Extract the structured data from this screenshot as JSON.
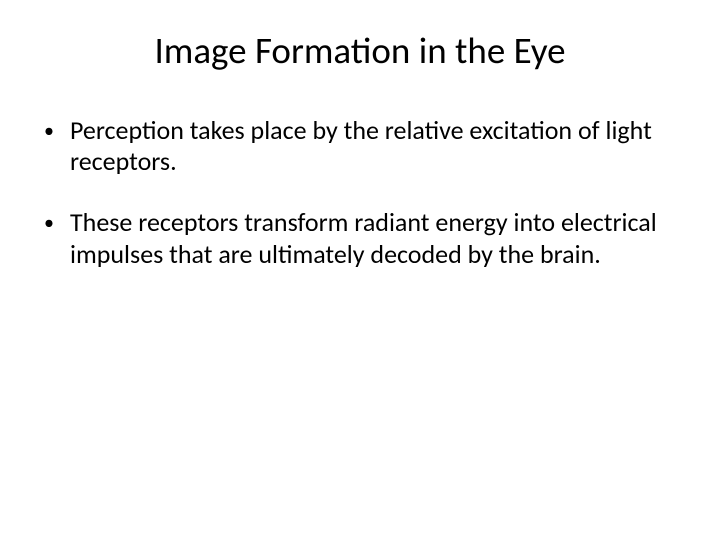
{
  "slide": {
    "title": "Image Formation in the Eye",
    "bullets": [
      {
        "marker": "•",
        "text": "Perception takes place by the relative excitation of light receptors."
      },
      {
        "marker": "•",
        "text": "These receptors transform radiant energy into electrical impulses that are ultimately decoded by the brain."
      }
    ],
    "styling": {
      "background_color": "#ffffff",
      "text_color": "#000000",
      "title_fontsize": 37,
      "body_fontsize": 26,
      "font_family": "Calibri",
      "title_weight": 400,
      "bullet_spacing": 30
    }
  }
}
